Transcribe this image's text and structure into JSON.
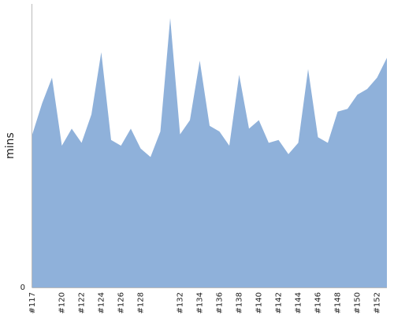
{
  "chart_data": {
    "type": "area",
    "ylabel": "mins",
    "y_tick_labels": [
      "0"
    ],
    "ylim": [
      0,
      100
    ],
    "grid": false,
    "fill_color": "#8fb1da",
    "axis_color": "#bbbbbb",
    "categories": [
      "#117",
      "#118",
      "#119",
      "#120",
      "#121",
      "#122",
      "#123",
      "#124",
      "#125",
      "#126",
      "#127",
      "#128",
      "#129",
      "#130",
      "#131",
      "#132",
      "#133",
      "#134",
      "#135",
      "#136",
      "#137",
      "#138",
      "#139",
      "#140",
      "#141",
      "#142",
      "#143",
      "#144",
      "#145",
      "#146",
      "#147",
      "#148",
      "#149",
      "#150",
      "#151",
      "#152",
      "#153"
    ],
    "x_tick_labels": [
      "#117",
      "#120",
      "#122",
      "#124",
      "#126",
      "#128",
      "#132",
      "#134",
      "#136",
      "#138",
      "#140",
      "#142",
      "#144",
      "#146",
      "#148",
      "#150",
      "#152"
    ],
    "values": [
      54,
      65,
      74,
      50,
      56,
      51,
      61,
      83,
      52,
      50,
      56,
      49,
      46,
      55,
      95,
      54,
      59,
      80,
      57,
      55,
      50,
      75,
      56,
      59,
      51,
      52,
      47,
      51,
      77,
      53,
      51,
      62,
      63,
      68,
      70,
      74,
      81
    ]
  }
}
